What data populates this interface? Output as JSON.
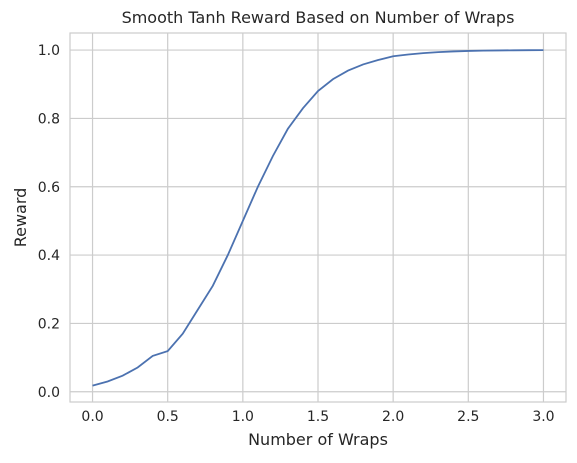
{
  "chart_data": {
    "type": "line",
    "title": "Smooth Tanh Reward Based on Number of Wraps",
    "xlabel": "Number of Wraps",
    "ylabel": "Reward",
    "xlim": [
      -0.15,
      3.15
    ],
    "ylim": [
      -0.03,
      1.05
    ],
    "xticks": [
      0.0,
      0.5,
      1.0,
      1.5,
      2.0,
      2.5,
      3.0
    ],
    "xtick_labels": [
      "0.0",
      "0.5",
      "1.0",
      "1.5",
      "2.0",
      "2.5",
      "3.0"
    ],
    "yticks": [
      0.0,
      0.2,
      0.4,
      0.6,
      0.8,
      1.0
    ],
    "ytick_labels": [
      "0.0",
      "0.2",
      "0.4",
      "0.6",
      "0.8",
      "1.0"
    ],
    "grid": true,
    "series": [
      {
        "color": "#4c72b0",
        "x": [
          0.0,
          0.1,
          0.2,
          0.3,
          0.4,
          0.5,
          0.6,
          0.7,
          0.8,
          0.9,
          1.0,
          1.1,
          1.2,
          1.3,
          1.4,
          1.5,
          1.6,
          1.7,
          1.8,
          1.9,
          2.0,
          2.1,
          2.2,
          2.3,
          2.4,
          2.5,
          2.6,
          2.7,
          2.8,
          2.9,
          3.0
        ],
        "y": [
          0.018,
          0.03,
          0.047,
          0.071,
          0.105,
          0.119,
          0.17,
          0.24,
          0.31,
          0.4,
          0.5,
          0.6,
          0.69,
          0.77,
          0.83,
          0.88,
          0.915,
          0.94,
          0.958,
          0.971,
          0.982,
          0.987,
          0.991,
          0.994,
          0.996,
          0.9975,
          0.9985,
          0.999,
          0.9994,
          0.9997,
          0.9998
        ]
      }
    ]
  }
}
